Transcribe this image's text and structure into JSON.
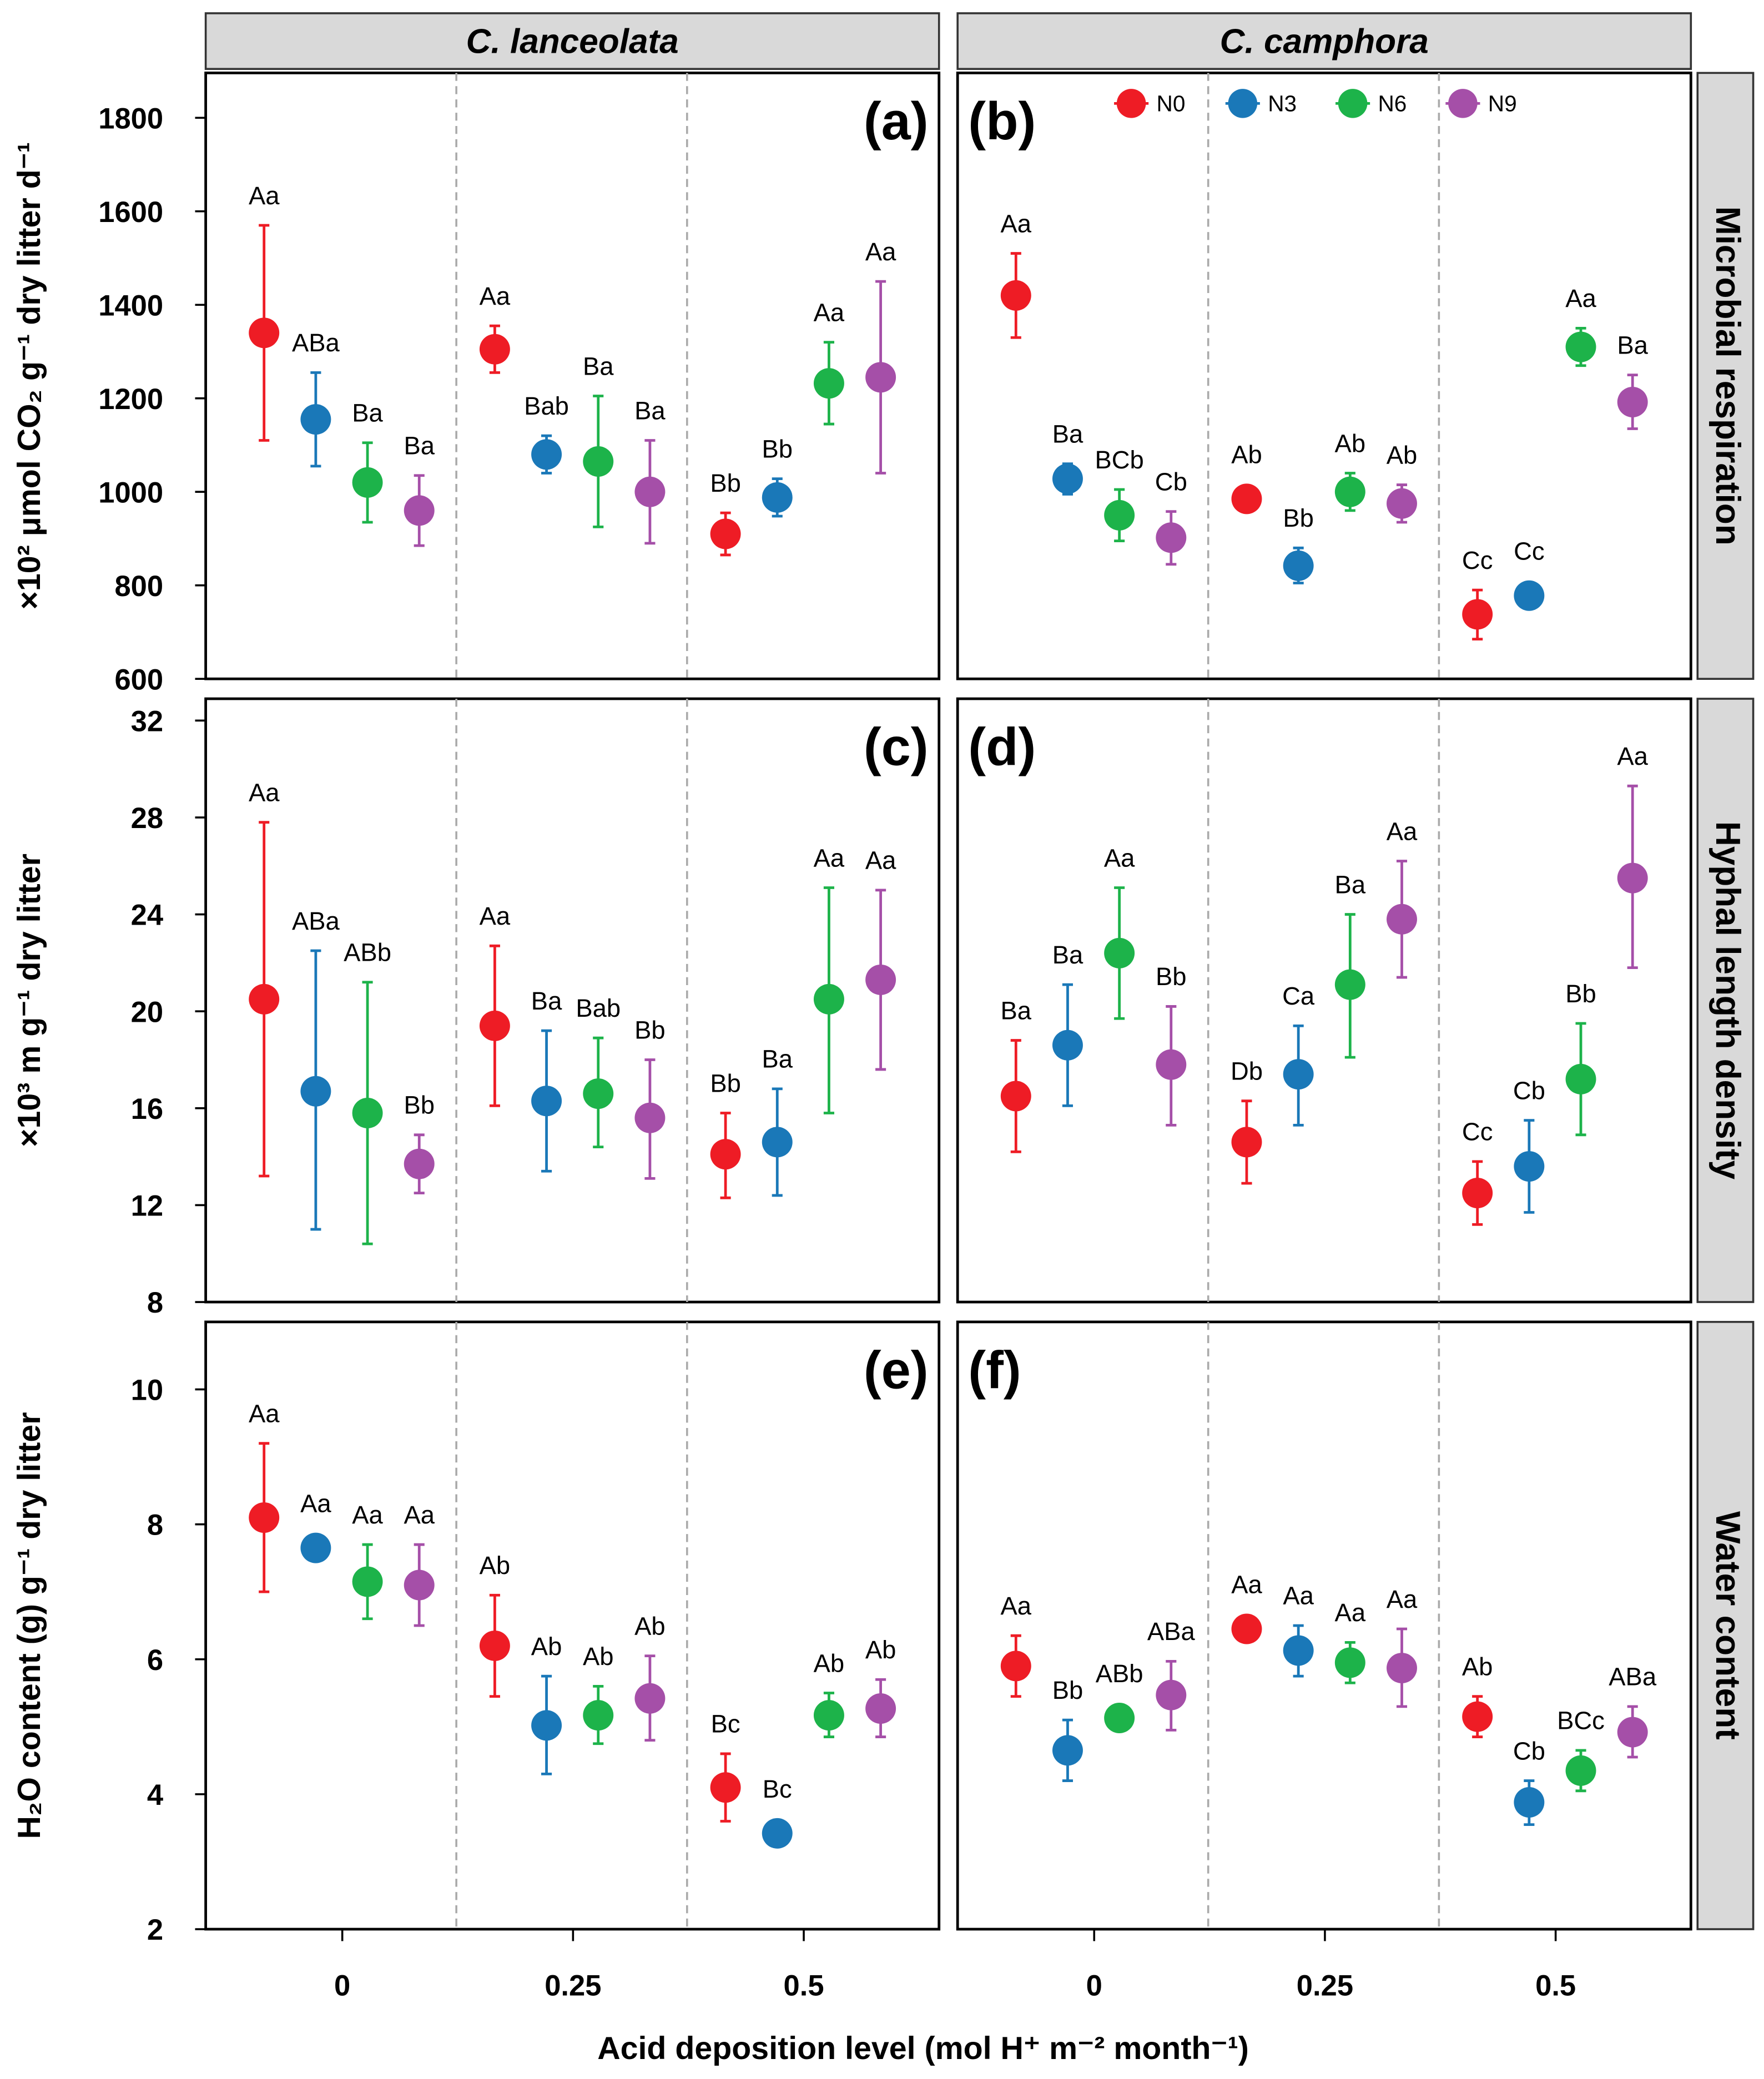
{
  "chart_data": {
    "type": "scatter",
    "title": "",
    "xlabel": "Acid deposition level (mol H⁺ m⁻² month⁻¹)",
    "x_ticks": [
      "0",
      "0.25",
      "0.5"
    ],
    "x_levels": [
      0,
      0.25,
      0.5
    ],
    "columns": [
      "C. lanceolata",
      "C. camphora"
    ],
    "rows": [
      "Microbial respiration",
      "Hyphal length density",
      "Water content"
    ],
    "legend": {
      "placement": "top-right",
      "entries": [
        {
          "name": "N0",
          "color": "#ee1c25"
        },
        {
          "name": "N3",
          "color": "#1a78b8"
        },
        {
          "name": "N6",
          "color": "#1db34a"
        },
        {
          "name": "N9",
          "color": "#a54fa8"
        }
      ]
    },
    "row_axes": [
      {
        "ylabel": "×10² μmol CO₂ g⁻¹ dry litter d⁻¹",
        "ylim": [
          600,
          1896
        ],
        "yticks": [
          600,
          800,
          1000,
          1200,
          1400,
          1600,
          1800
        ]
      },
      {
        "ylabel": "×10³ m g⁻¹ dry litter",
        "ylim": [
          8,
          32.9
        ],
        "yticks": [
          8,
          12,
          16,
          20,
          24,
          28,
          32
        ]
      },
      {
        "ylabel": "H₂O content (g) g⁻¹ dry litter",
        "ylim": [
          2,
          11
        ],
        "yticks": [
          2,
          4,
          6,
          8,
          10
        ]
      }
    ],
    "panels": [
      {
        "label": "(a)",
        "row": 0,
        "col": 0,
        "points": [
          [
            1340,
            1110,
            1570,
            "Aa"
          ],
          [
            1155,
            1055,
            1255,
            "ABa"
          ],
          [
            1020,
            935,
            1105,
            "Ba"
          ],
          [
            960,
            885,
            1035,
            "Ba"
          ],
          [
            1305,
            1255,
            1355,
            "Aa"
          ],
          [
            1080,
            1040,
            1120,
            "Bab"
          ],
          [
            1065,
            925,
            1205,
            "Ba"
          ],
          [
            1000,
            890,
            1110,
            "Ba"
          ],
          [
            910,
            865,
            955,
            "Bb"
          ],
          [
            988,
            948,
            1028,
            "Bb"
          ],
          [
            1232,
            1145,
            1320,
            "Aa"
          ],
          [
            1245,
            1040,
            1450,
            "Aa"
          ]
        ]
      },
      {
        "label": "(b)",
        "row": 0,
        "col": 1,
        "points": [
          [
            1420,
            1330,
            1510,
            "Aa"
          ],
          [
            1028,
            995,
            1060,
            "Ba"
          ],
          [
            950,
            895,
            1005,
            "BCb"
          ],
          [
            902,
            845,
            958,
            "Cb"
          ],
          [
            985,
            975,
            995,
            "Ab"
          ],
          [
            842,
            805,
            880,
            "Bb"
          ],
          [
            1000,
            960,
            1040,
            "Ab"
          ],
          [
            975,
            935,
            1015,
            "Ab"
          ],
          [
            738,
            685,
            790,
            "Cc"
          ],
          [
            778,
            770,
            786,
            "Cc"
          ],
          [
            1310,
            1270,
            1350,
            "Aa"
          ],
          [
            1192,
            1135,
            1250,
            "Ba"
          ]
        ]
      },
      {
        "label": "(c)",
        "row": 1,
        "col": 0,
        "points": [
          [
            20.5,
            13.2,
            27.8,
            "Aa"
          ],
          [
            16.7,
            11.0,
            22.5,
            "ABa"
          ],
          [
            15.8,
            10.4,
            21.2,
            "ABb"
          ],
          [
            13.7,
            12.5,
            14.9,
            "Bb"
          ],
          [
            19.4,
            16.1,
            22.7,
            "Aa"
          ],
          [
            16.3,
            13.4,
            19.2,
            "Ba"
          ],
          [
            16.6,
            14.4,
            18.9,
            "Bab"
          ],
          [
            15.6,
            13.1,
            18.0,
            "Bb"
          ],
          [
            14.1,
            12.3,
            15.8,
            "Bb"
          ],
          [
            14.6,
            12.4,
            16.8,
            "Ba"
          ],
          [
            20.5,
            15.8,
            25.1,
            "Aa"
          ],
          [
            21.3,
            17.6,
            25.0,
            "Aa"
          ]
        ]
      },
      {
        "label": "(d)",
        "row": 1,
        "col": 1,
        "points": [
          [
            16.5,
            14.2,
            18.8,
            "Ba"
          ],
          [
            18.6,
            16.1,
            21.1,
            "Ba"
          ],
          [
            22.4,
            19.7,
            25.1,
            "Aa"
          ],
          [
            17.8,
            15.3,
            20.2,
            "Bb"
          ],
          [
            14.6,
            12.9,
            16.3,
            "Db"
          ],
          [
            17.4,
            15.3,
            19.4,
            "Ca"
          ],
          [
            21.1,
            18.1,
            24.0,
            "Ba"
          ],
          [
            23.8,
            21.4,
            26.2,
            "Aa"
          ],
          [
            12.5,
            11.2,
            13.8,
            "Cc"
          ],
          [
            13.6,
            11.7,
            15.5,
            "Cb"
          ],
          [
            17.2,
            14.9,
            19.5,
            "Bb"
          ],
          [
            25.5,
            21.8,
            29.3,
            "Aa"
          ]
        ]
      },
      {
        "label": "(e)",
        "row": 2,
        "col": 0,
        "points": [
          [
            8.1,
            7.0,
            9.2,
            "Aa"
          ],
          [
            7.65,
            7.6,
            7.7,
            "Aa"
          ],
          [
            7.15,
            6.6,
            7.7,
            "Aa"
          ],
          [
            7.1,
            6.5,
            7.7,
            "Aa"
          ],
          [
            6.2,
            5.45,
            6.95,
            "Ab"
          ],
          [
            5.02,
            4.3,
            5.75,
            "Ab"
          ],
          [
            5.17,
            4.75,
            5.6,
            "Ab"
          ],
          [
            5.42,
            4.8,
            6.05,
            "Ab"
          ],
          [
            4.1,
            3.6,
            4.6,
            "Bc"
          ],
          [
            3.42,
            3.4,
            3.45,
            "Bc"
          ],
          [
            5.17,
            4.85,
            5.5,
            "Ab"
          ],
          [
            5.27,
            4.85,
            5.7,
            "Ab"
          ]
        ]
      },
      {
        "label": "(f)",
        "row": 2,
        "col": 1,
        "points": [
          [
            5.9,
            5.45,
            6.35,
            "Aa"
          ],
          [
            4.65,
            4.2,
            5.1,
            "Bb"
          ],
          [
            5.13,
            5.1,
            5.16,
            "ABb"
          ],
          [
            5.47,
            4.95,
            5.97,
            "ABa"
          ],
          [
            6.45,
            6.4,
            6.5,
            "Aa"
          ],
          [
            6.13,
            5.75,
            6.5,
            "Aa"
          ],
          [
            5.95,
            5.65,
            6.25,
            "Aa"
          ],
          [
            5.87,
            5.3,
            6.45,
            "Aa"
          ],
          [
            5.15,
            4.85,
            5.45,
            "Ab"
          ],
          [
            3.88,
            3.55,
            4.2,
            "Cb"
          ],
          [
            4.35,
            4.05,
            4.65,
            "BCc"
          ],
          [
            4.92,
            4.55,
            5.3,
            "ABa"
          ]
        ]
      }
    ]
  }
}
